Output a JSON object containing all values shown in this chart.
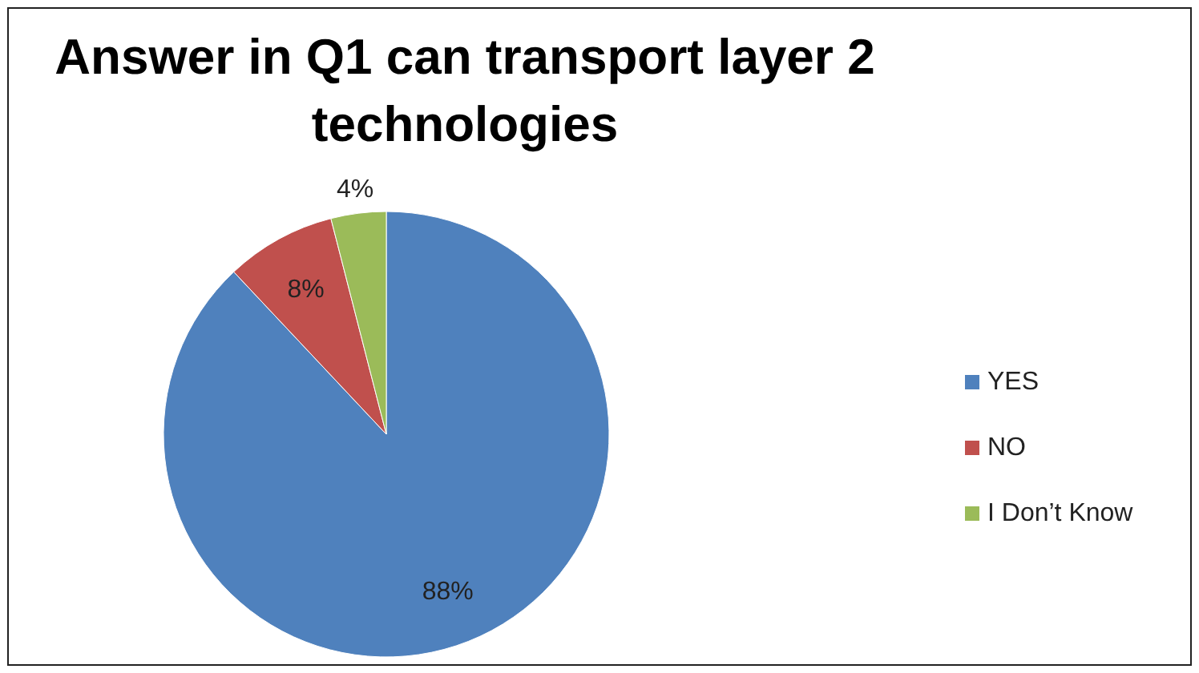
{
  "chart_data": {
    "type": "pie",
    "title": "Answer in Q1 can transport layer 2 technologies",
    "categories": [
      "YES",
      "NO",
      "I Don’t Know"
    ],
    "values": [
      88,
      8,
      4
    ],
    "colors": [
      "#4f81bd",
      "#c0504d",
      "#9bbb59"
    ],
    "value_labels": [
      "88%",
      "8%",
      "4%"
    ],
    "legend": "right"
  }
}
